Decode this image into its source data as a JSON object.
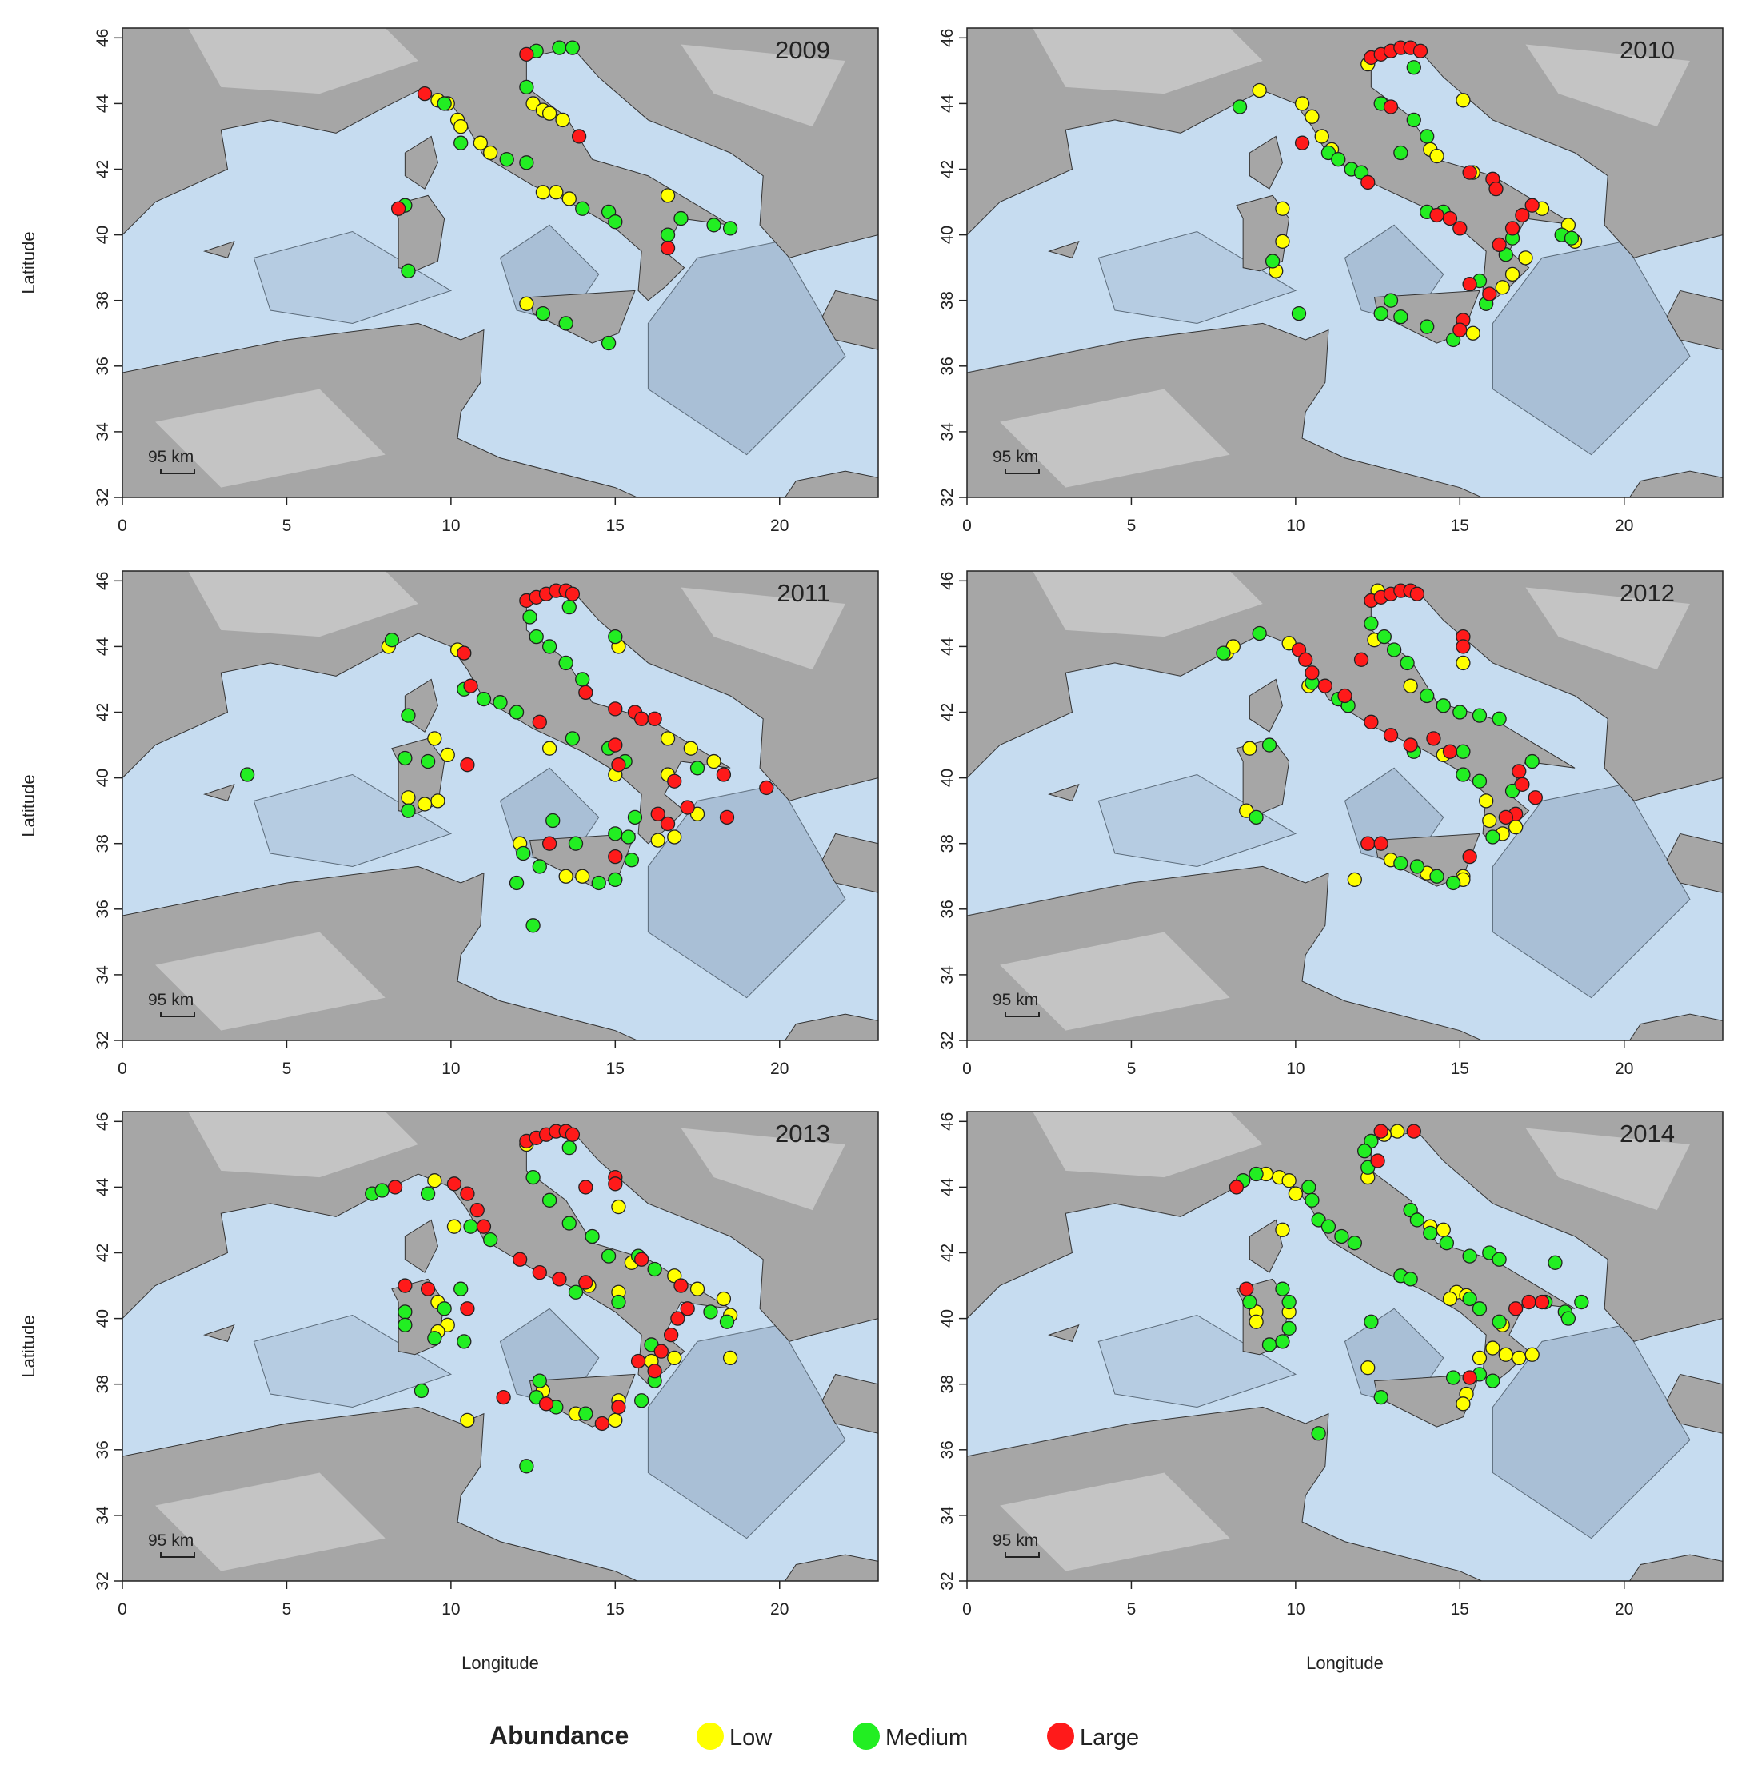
{
  "legend": {
    "title": "Abundance",
    "items": [
      {
        "name": "Low",
        "color": "#ffff00"
      },
      {
        "name": "Medium",
        "color": "#22ee22"
      },
      {
        "name": "Large",
        "color": "#ff1a1a"
      }
    ]
  },
  "chart_data": [
    {
      "type": "scatter",
      "title": "2009",
      "ylabel": "Latitude",
      "scale_label": "95 km",
      "xlim": [
        0,
        23
      ],
      "ylim": [
        32,
        46.3
      ],
      "xticks": [
        0,
        5,
        10,
        15,
        20
      ],
      "yticks": [
        32,
        34,
        36,
        38,
        40,
        42,
        44,
        46
      ],
      "series": [
        {
          "x": [
            9.6,
            9.9,
            10.2,
            10.3,
            10.9,
            11.2,
            12.5,
            12.8,
            13.0,
            13.4,
            12.8,
            13.2,
            13.6,
            16.6,
            12.3
          ],
          "y": [
            44.1,
            44.0,
            43.5,
            43.3,
            42.8,
            42.5,
            44.0,
            43.8,
            43.7,
            43.5,
            41.3,
            41.3,
            41.1,
            41.2,
            37.9
          ]
        },
        {
          "x": [
            13.3,
            13.7,
            12.6,
            12.3,
            10.3,
            9.8,
            11.7,
            12.3,
            14.0,
            14.8,
            15.0,
            17.0,
            16.6,
            18.0,
            18.5,
            8.6,
            8.7,
            12.8,
            13.5,
            14.8
          ],
          "y": [
            45.7,
            45.7,
            45.6,
            44.5,
            42.8,
            44.0,
            42.3,
            42.2,
            40.8,
            40.7,
            40.4,
            40.5,
            40.0,
            40.3,
            40.2,
            40.9,
            38.9,
            37.6,
            37.3,
            36.7
          ]
        },
        {
          "x": [
            12.3,
            9.2,
            13.9,
            8.4,
            16.6
          ],
          "y": [
            45.5,
            44.3,
            43.0,
            40.8,
            39.6
          ]
        }
      ]
    },
    {
      "type": "scatter",
      "title": "2010",
      "scale_label": "95 km",
      "xlim": [
        0,
        23
      ],
      "ylim": [
        32,
        46.3
      ],
      "xticks": [
        0,
        5,
        10,
        15,
        20
      ],
      "yticks": [
        32,
        34,
        36,
        38,
        40,
        42,
        44,
        46
      ],
      "series": [
        {
          "x": [
            8.9,
            10.2,
            10.5,
            10.8,
            11.1,
            14.1,
            14.3,
            15.4,
            17.5,
            18.3,
            18.5,
            17.0,
            16.6,
            16.3,
            15.4,
            9.6,
            9.6,
            9.4,
            15.1,
            12.2
          ],
          "y": [
            44.4,
            44.0,
            43.6,
            43.0,
            42.6,
            42.6,
            42.4,
            41.9,
            40.8,
            40.3,
            39.8,
            39.3,
            38.8,
            38.4,
            37.0,
            40.8,
            39.8,
            38.9,
            44.1,
            45.2
          ]
        },
        {
          "x": [
            8.3,
            13.6,
            12.6,
            13.6,
            14.0,
            11.0,
            11.3,
            11.7,
            12.0,
            13.2,
            14.0,
            14.5,
            16.6,
            16.4,
            18.1,
            18.4,
            15.6,
            15.8,
            12.9,
            12.6,
            13.2,
            14.0,
            14.8,
            9.3,
            10.1
          ],
          "y": [
            43.9,
            45.1,
            44.0,
            43.5,
            43.0,
            42.5,
            42.3,
            42.0,
            41.9,
            42.5,
            40.7,
            40.7,
            39.9,
            39.4,
            40.0,
            39.9,
            38.6,
            37.9,
            38.0,
            37.6,
            37.5,
            37.2,
            36.8,
            39.2,
            37.6
          ]
        },
        {
          "x": [
            12.3,
            12.6,
            12.9,
            13.2,
            13.5,
            13.8,
            12.9,
            10.2,
            12.2,
            15.3,
            16.0,
            16.1,
            14.3,
            14.7,
            15.0,
            17.2,
            16.9,
            16.6,
            16.2,
            15.3,
            15.9,
            15.1,
            15.0
          ],
          "y": [
            45.4,
            45.5,
            45.6,
            45.7,
            45.7,
            45.6,
            43.9,
            42.8,
            41.6,
            41.9,
            41.7,
            41.4,
            40.6,
            40.5,
            40.2,
            40.9,
            40.6,
            40.2,
            39.7,
            38.5,
            38.2,
            37.4,
            37.1
          ]
        }
      ]
    },
    {
      "type": "scatter",
      "title": "2011",
      "ylabel": "Latitude",
      "scale_label": "95 km",
      "xlim": [
        0,
        23
      ],
      "ylim": [
        32,
        46.3
      ],
      "xticks": [
        0,
        5,
        10,
        15,
        20
      ],
      "yticks": [
        32,
        34,
        36,
        38,
        40,
        42,
        44,
        46
      ],
      "series": [
        {
          "x": [
            8.1,
            10.2,
            9.5,
            9.9,
            9.6,
            9.2,
            8.7,
            13.0,
            15.0,
            16.6,
            17.3,
            18.0,
            16.6,
            16.8,
            12.1,
            13.5,
            14.0,
            15.1,
            16.3,
            17.5
          ],
          "y": [
            44.0,
            43.9,
            41.2,
            40.7,
            39.3,
            39.2,
            39.4,
            40.9,
            40.1,
            41.2,
            40.9,
            40.5,
            40.1,
            38.2,
            38.0,
            37.0,
            37.0,
            44.0,
            38.1,
            38.9
          ]
        },
        {
          "x": [
            8.2,
            13.6,
            12.4,
            12.6,
            13.0,
            13.5,
            14.0,
            10.4,
            11.0,
            11.5,
            12.0,
            13.7,
            14.8,
            15.3,
            8.7,
            8.6,
            8.7,
            9.3,
            3.8,
            15.0,
            15.4,
            15.6,
            15.5,
            13.1,
            13.8,
            12.2,
            12.7,
            14.5,
            15.0,
            12.0,
            12.5,
            15.0,
            17.5
          ],
          "y": [
            44.2,
            45.2,
            44.9,
            44.3,
            44.0,
            43.5,
            43.0,
            42.7,
            42.4,
            42.3,
            42.0,
            41.2,
            40.9,
            40.5,
            41.9,
            40.6,
            39.0,
            40.5,
            40.1,
            38.3,
            38.2,
            38.8,
            37.5,
            38.7,
            38.0,
            37.7,
            37.3,
            36.8,
            36.9,
            36.8,
            35.5,
            44.3,
            40.3
          ]
        },
        {
          "x": [
            12.3,
            12.6,
            12.9,
            13.2,
            13.5,
            13.7,
            15.0,
            15.6,
            15.8,
            16.2,
            14.1,
            15.0,
            18.3,
            19.6,
            18.4,
            16.8,
            17.2,
            16.3,
            16.6,
            13.0,
            15.0,
            10.5,
            10.4,
            10.6,
            12.7,
            15.1
          ],
          "y": [
            45.4,
            45.5,
            45.6,
            45.7,
            45.7,
            45.6,
            42.1,
            42.0,
            41.8,
            41.8,
            42.6,
            41.0,
            40.1,
            39.7,
            38.8,
            39.9,
            39.1,
            38.9,
            38.6,
            38.0,
            37.6,
            40.4,
            43.8,
            42.8,
            41.7,
            40.4
          ]
        }
      ]
    },
    {
      "type": "scatter",
      "title": "2012",
      "scale_label": "95 km",
      "xlim": [
        0,
        23
      ],
      "ylim": [
        32,
        46.3
      ],
      "xticks": [
        0,
        5,
        10,
        15,
        20
      ],
      "yticks": [
        32,
        34,
        36,
        38,
        40,
        42,
        44,
        46
      ],
      "series": [
        {
          "x": [
            7.9,
            8.1,
            9.8,
            10.4,
            12.5,
            12.4,
            13.5,
            15.1,
            8.6,
            8.5,
            15.8,
            15.9,
            16.3,
            16.7,
            12.9,
            14.0,
            15.1,
            15.1,
            11.8,
            14.5
          ],
          "y": [
            43.8,
            44.0,
            44.1,
            42.8,
            45.7,
            44.2,
            42.8,
            43.5,
            40.9,
            39.0,
            39.3,
            38.7,
            38.3,
            38.5,
            37.5,
            37.1,
            37.0,
            36.9,
            36.9,
            40.7
          ]
        },
        {
          "x": [
            7.8,
            8.9,
            12.3,
            12.7,
            13.0,
            13.4,
            14.0,
            14.5,
            15.0,
            15.6,
            16.2,
            10.5,
            11.3,
            11.6,
            13.6,
            15.1,
            15.6,
            17.2,
            16.6,
            16.0,
            13.7,
            14.3,
            14.8,
            13.2,
            8.8,
            9.2,
            15.1
          ],
          "y": [
            43.8,
            44.4,
            44.7,
            44.3,
            43.9,
            43.5,
            42.5,
            42.2,
            42.0,
            41.9,
            41.8,
            42.9,
            42.4,
            42.2,
            40.8,
            40.8,
            39.9,
            40.5,
            39.6,
            38.2,
            37.3,
            37.0,
            36.8,
            37.4,
            38.8,
            41.0,
            40.1
          ]
        },
        {
          "x": [
            12.3,
            12.6,
            12.9,
            13.2,
            13.5,
            13.7,
            12.0,
            15.1,
            15.1,
            10.1,
            10.3,
            10.5,
            10.9,
            11.5,
            12.3,
            12.9,
            13.5,
            14.2,
            14.7,
            16.8,
            16.9,
            17.3,
            16.7,
            16.4,
            12.2,
            12.6,
            15.3
          ],
          "y": [
            45.4,
            45.5,
            45.6,
            45.7,
            45.7,
            45.6,
            43.6,
            44.3,
            44.0,
            43.9,
            43.6,
            43.2,
            42.8,
            42.5,
            41.7,
            41.3,
            41.0,
            41.2,
            40.8,
            40.2,
            39.8,
            39.4,
            38.9,
            38.8,
            38.0,
            38.0,
            37.6
          ]
        }
      ]
    },
    {
      "type": "scatter",
      "title": "2013",
      "ylabel": "Latitude",
      "xlabel": "Longitude",
      "scale_label": "95 km",
      "xlim": [
        0,
        23
      ],
      "ylim": [
        32,
        46.3
      ],
      "xticks": [
        0,
        5,
        10,
        15,
        20
      ],
      "yticks": [
        32,
        34,
        36,
        38,
        40,
        42,
        44,
        46
      ],
      "series": [
        {
          "x": [
            9.5,
            10.1,
            12.3,
            15.1,
            15.5,
            16.8,
            17.5,
            18.3,
            15.1,
            14.2,
            16.8,
            16.1,
            18.5,
            18.5,
            12.8,
            13.8,
            15.0,
            15.1,
            9.6,
            9.9,
            9.6,
            10.5
          ],
          "y": [
            44.2,
            42.8,
            45.3,
            43.4,
            41.7,
            41.3,
            40.9,
            40.6,
            40.8,
            41.0,
            38.8,
            38.7,
            40.1,
            38.8,
            37.8,
            37.1,
            36.9,
            37.5,
            40.5,
            39.8,
            39.6,
            36.9
          ]
        },
        {
          "x": [
            7.6,
            7.9,
            9.3,
            13.6,
            12.5,
            13.0,
            10.6,
            11.2,
            13.6,
            14.3,
            14.8,
            15.7,
            16.2,
            13.8,
            15.1,
            17.9,
            18.4,
            16.1,
            16.2,
            15.8,
            12.7,
            12.6,
            13.2,
            14.1,
            8.6,
            8.6,
            9.8,
            9.5,
            10.4,
            10.3,
            9.1,
            12.3
          ],
          "y": [
            43.8,
            43.9,
            43.8,
            45.2,
            44.3,
            43.6,
            42.8,
            42.4,
            42.9,
            42.5,
            41.9,
            41.9,
            41.5,
            40.8,
            40.5,
            40.2,
            39.9,
            39.2,
            38.1,
            37.5,
            38.1,
            37.6,
            37.3,
            37.1,
            40.2,
            39.8,
            40.3,
            39.4,
            39.3,
            40.9,
            37.8,
            35.5
          ]
        },
        {
          "x": [
            12.3,
            12.6,
            12.9,
            13.2,
            13.5,
            13.7,
            8.3,
            10.1,
            10.5,
            10.8,
            11.0,
            14.1,
            15.0,
            15.0,
            12.1,
            12.7,
            13.3,
            14.1,
            15.8,
            17.0,
            17.2,
            16.9,
            16.7,
            16.4,
            15.7,
            16.2,
            8.6,
            9.3,
            10.5,
            11.6,
            12.9,
            14.6,
            15.1
          ],
          "y": [
            45.4,
            45.5,
            45.6,
            45.7,
            45.7,
            45.6,
            44.0,
            44.1,
            43.8,
            43.3,
            42.8,
            44.0,
            44.3,
            44.1,
            41.8,
            41.4,
            41.2,
            41.1,
            41.8,
            41.0,
            40.3,
            40.0,
            39.5,
            39.0,
            38.7,
            38.4,
            41.0,
            40.9,
            40.3,
            37.6,
            37.4,
            36.8,
            37.3
          ]
        }
      ]
    },
    {
      "type": "scatter",
      "title": "2014",
      "xlabel": "Longitude",
      "scale_label": "95 km",
      "xlim": [
        0,
        23
      ],
      "ylim": [
        32,
        46.3
      ],
      "xticks": [
        0,
        5,
        10,
        15,
        20
      ],
      "yticks": [
        32,
        34,
        36,
        38,
        40,
        42,
        44,
        46
      ],
      "series": [
        {
          "x": [
            9.1,
            9.5,
            9.8,
            10.0,
            9.6,
            12.7,
            13.1,
            12.2,
            14.1,
            14.5,
            14.9,
            15.2,
            14.7,
            16.3,
            16.0,
            15.6,
            16.4,
            16.8,
            17.2,
            15.2,
            15.1,
            8.8,
            8.8,
            9.8,
            12.2
          ],
          "y": [
            44.4,
            44.3,
            44.2,
            43.8,
            42.7,
            45.6,
            45.7,
            44.3,
            42.8,
            42.7,
            40.8,
            40.7,
            40.6,
            39.8,
            39.1,
            38.8,
            38.9,
            38.8,
            38.9,
            37.7,
            37.4,
            40.2,
            39.9,
            40.2,
            38.5
          ]
        },
        {
          "x": [
            8.4,
            8.8,
            10.4,
            10.5,
            10.7,
            11.0,
            11.4,
            11.8,
            12.3,
            12.1,
            12.2,
            13.5,
            13.7,
            14.1,
            14.6,
            15.3,
            15.9,
            16.2,
            13.2,
            13.5,
            15.3,
            15.6,
            16.2,
            17.9,
            17.6,
            18.2,
            18.7,
            18.3,
            15.6,
            16.0,
            12.3,
            12.6,
            14.8,
            10.7,
            9.2,
            9.6,
            9.8,
            9.8,
            9.6,
            8.6
          ],
          "y": [
            44.2,
            44.4,
            44.0,
            43.6,
            43.0,
            42.8,
            42.5,
            42.3,
            45.4,
            45.1,
            44.6,
            43.3,
            43.0,
            42.6,
            42.3,
            41.9,
            42.0,
            41.8,
            41.3,
            41.2,
            40.6,
            40.3,
            39.9,
            41.7,
            40.5,
            40.2,
            40.5,
            40.0,
            38.3,
            38.1,
            39.9,
            37.6,
            38.2,
            36.5,
            39.2,
            39.3,
            39.7,
            40.5,
            40.9,
            40.5
          ]
        },
        {
          "x": [
            8.2,
            12.6,
            13.6,
            12.5,
            16.7,
            17.1,
            17.5,
            8.5,
            15.3
          ],
          "y": [
            44.0,
            45.7,
            45.7,
            44.8,
            40.3,
            40.5,
            40.5,
            40.9,
            38.2
          ]
        }
      ]
    }
  ]
}
